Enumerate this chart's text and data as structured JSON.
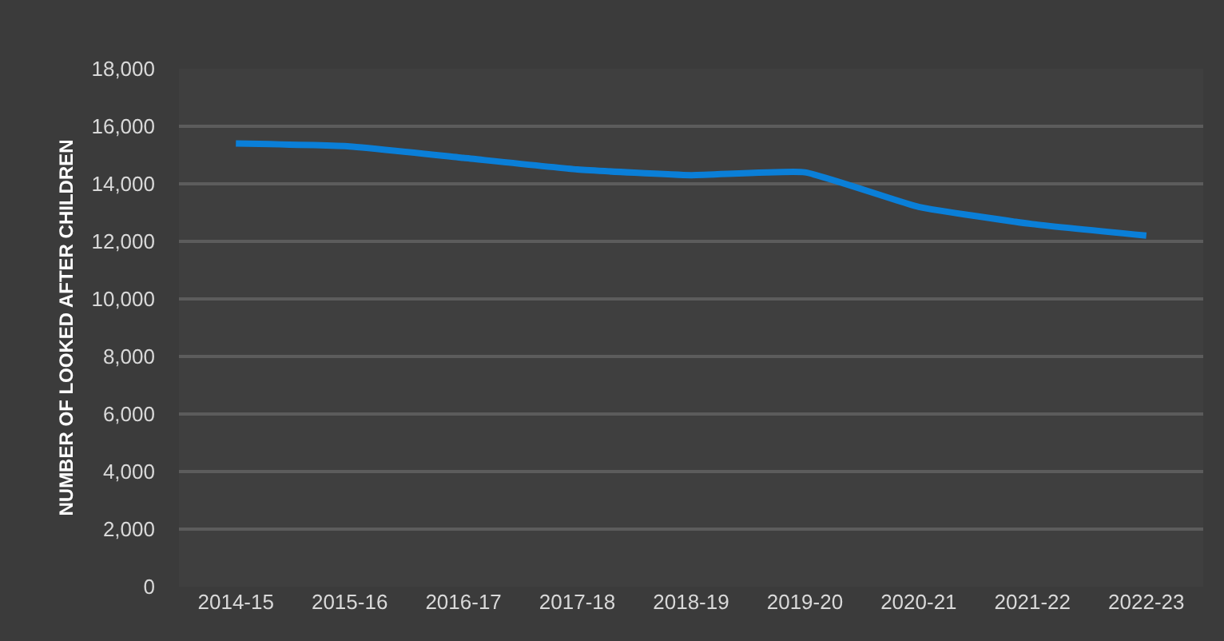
{
  "chart_data": {
    "type": "line",
    "ylabel": "NUMBER OF LOOKED AFTER CHILDREN",
    "categories": [
      "2014-15",
      "2015-16",
      "2016-17",
      "2017-18",
      "2018-19",
      "2019-20",
      "2020-21",
      "2021-22",
      "2022-23"
    ],
    "series": [
      {
        "color": "#0a7fd8",
        "values": [
          15400,
          15300,
          14900,
          14500,
          14300,
          14400,
          13200,
          12600,
          12200
        ]
      }
    ],
    "ylim": [
      0,
      18000
    ],
    "yticks": [
      {
        "value": 0,
        "label": "0"
      },
      {
        "value": 2000,
        "label": "2,000"
      },
      {
        "value": 4000,
        "label": "4,000"
      },
      {
        "value": 6000,
        "label": "6,000"
      },
      {
        "value": 8000,
        "label": "8,000"
      },
      {
        "value": 10000,
        "label": "10,000"
      },
      {
        "value": 12000,
        "label": "12,000"
      },
      {
        "value": 14000,
        "label": "14,000"
      },
      {
        "value": 16000,
        "label": "16,000"
      },
      {
        "value": 18000,
        "label": "18,000"
      }
    ],
    "grid": "y",
    "marker": "none",
    "line_style": "solid"
  }
}
